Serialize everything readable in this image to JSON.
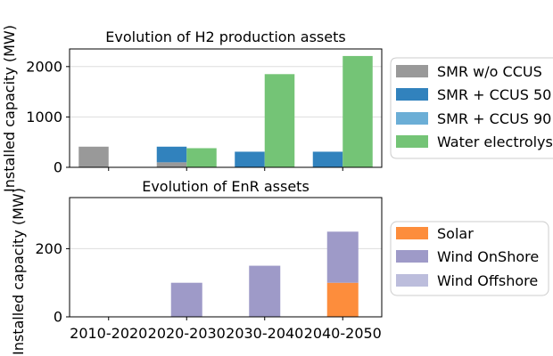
{
  "chart_data": [
    {
      "type": "bar",
      "stacked": true,
      "title": "Evolution of H2 production assets",
      "ylabel": "Installed capacity (MW)",
      "xlabel": "",
      "categories": [
        "2010-2020",
        "2020-2030",
        "2030-2040",
        "2040-2050"
      ],
      "ylim": [
        0,
        2350
      ],
      "yticks": [
        0,
        1000,
        2000
      ],
      "grid": true,
      "legend_position": "right",
      "groups": [
        {
          "name": "SMR",
          "series": [
            {
              "name": "SMR w/o CCUS",
              "color": "#999999",
              "values": [
                410,
                100,
                0,
                0
              ]
            },
            {
              "name": "SMR + CCUS 50",
              "color": "#3182bd",
              "values": [
                0,
                310,
                310,
                310
              ]
            },
            {
              "name": "SMR + CCUS 90",
              "color": "#6baed6",
              "values": [
                0,
                0,
                0,
                0
              ]
            }
          ]
        },
        {
          "name": "Electrolysis",
          "series": [
            {
              "name": "Water electrolys",
              "color": "#74c476",
              "values": [
                0,
                380,
                1850,
                2210
              ]
            }
          ]
        }
      ]
    },
    {
      "type": "bar",
      "stacked": true,
      "title": "Evolution of EnR assets",
      "ylabel": "Installed capacity (MW)",
      "xlabel": "",
      "categories": [
        "2010-2020",
        "2020-2030",
        "2030-2040",
        "2040-2050"
      ],
      "ylim": [
        0,
        350
      ],
      "yticks": [
        0,
        200
      ],
      "grid": true,
      "legend_position": "right",
      "series": [
        {
          "name": "Solar",
          "color": "#fd8d3c",
          "values": [
            0,
            0,
            0,
            100
          ]
        },
        {
          "name": "Wind OnShore",
          "color": "#9e9ac8",
          "values": [
            0,
            100,
            150,
            150
          ]
        },
        {
          "name": "Wind Offshore",
          "color": "#bcbddc",
          "values": [
            0,
            0,
            0,
            0
          ]
        }
      ]
    }
  ]
}
